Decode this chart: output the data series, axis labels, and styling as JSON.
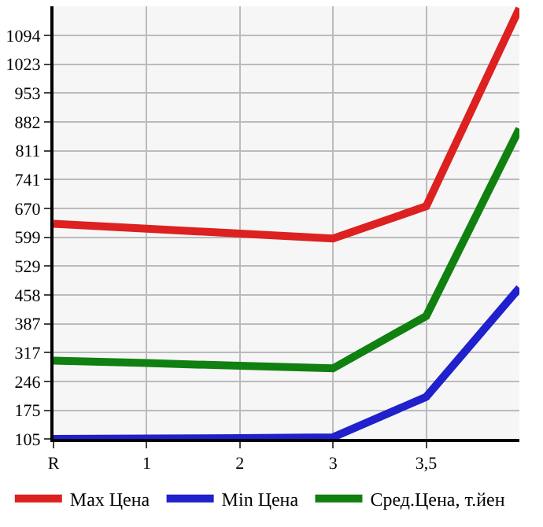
{
  "chart_data": {
    "type": "line",
    "categories": [
      "R",
      "1",
      "2",
      "3",
      "3,5",
      null
    ],
    "series": [
      {
        "name": "Max Цена",
        "color": "#dd2020",
        "values": [
          632,
          620,
          608,
          596,
          675,
          1160
        ]
      },
      {
        "name": "Min Цена",
        "color": "#2020cc",
        "values": [
          105,
          106,
          107,
          109,
          208,
          475
        ]
      },
      {
        "name": "Сред.Цена, т.йен",
        "color": "#108010",
        "values": [
          297,
          291,
          284,
          278,
          406,
          865
        ]
      }
    ],
    "ylim": [
      105,
      1165
    ],
    "yticks": [
      105,
      175,
      246,
      317,
      387,
      458,
      529,
      599,
      670,
      741,
      811,
      882,
      953,
      1023,
      1094
    ],
    "grid": true,
    "legend": "bottom",
    "marker": "none",
    "line_style": "solid"
  }
}
